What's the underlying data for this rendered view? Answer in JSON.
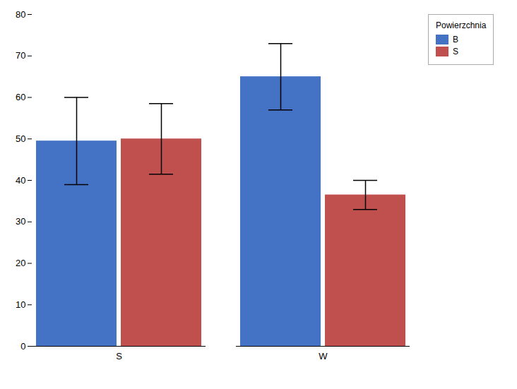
{
  "chart_data": {
    "type": "bar",
    "categories": [
      "S",
      "W"
    ],
    "series": [
      {
        "name": "B",
        "color": "#4472C4",
        "values": [
          49.5,
          65.0
        ],
        "errors": [
          10.5,
          8.0
        ]
      },
      {
        "name": "S",
        "color": "#C0504D",
        "values": [
          50.0,
          36.5
        ],
        "errors": [
          8.5,
          3.5
        ]
      }
    ],
    "legend_title": "Powierzchnia",
    "legend": "upper right",
    "ylim": [
      0,
      80
    ],
    "yticks": [
      0,
      10,
      20,
      30,
      40,
      50,
      60,
      70,
      80
    ],
    "grid": false
  }
}
